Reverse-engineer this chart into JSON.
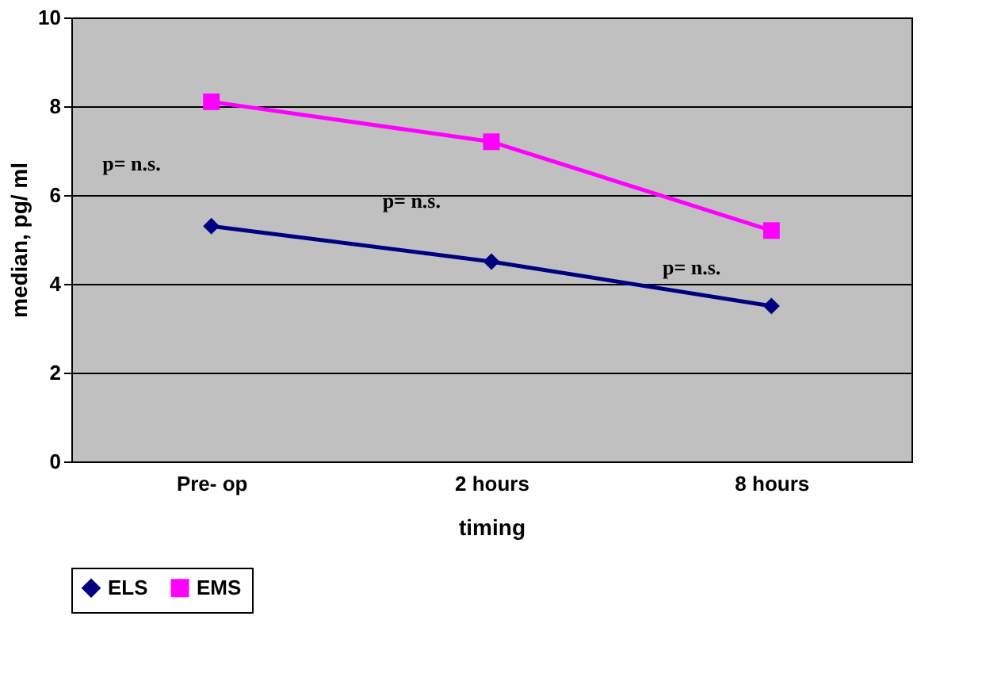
{
  "chart_data": {
    "type": "line",
    "xlabel": "timing",
    "ylabel": "median, pg/ ml",
    "categories": [
      "Pre- op",
      "2 hours",
      "8 hours"
    ],
    "series": [
      {
        "name": "ELS",
        "color": "#000080",
        "marker": "diamond",
        "values": [
          5.3,
          4.5,
          3.5
        ]
      },
      {
        "name": "EMS",
        "color": "#ff00ff",
        "marker": "square",
        "values": [
          8.1,
          7.2,
          5.2
        ]
      }
    ],
    "annotations": [
      "p= n.s.",
      "p= n.s.",
      "p= n.s."
    ],
    "ylim": [
      0,
      10
    ],
    "yticks": [
      0,
      2,
      4,
      6,
      8,
      10
    ],
    "grid": "y",
    "legend": "bottom"
  }
}
